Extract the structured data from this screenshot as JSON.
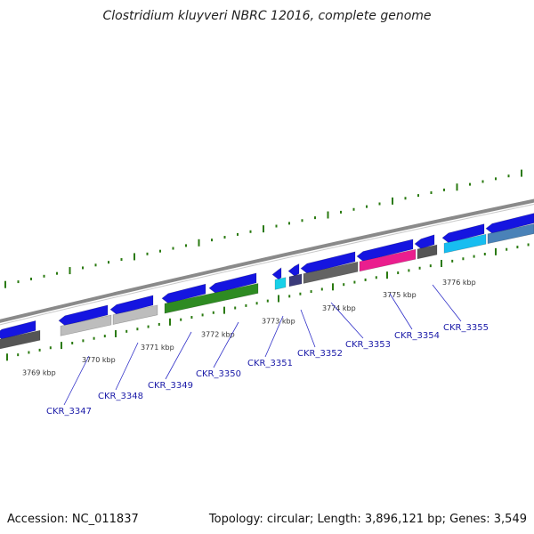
{
  "title": "Clostridium kluyveri NBRC 12016, complete genome",
  "footer": {
    "accession": "Accession: NC_011837",
    "summary": "Topology: circular; Length: 3,896,121 bp; Genes: 3,549"
  },
  "colors": {
    "gene_blue": "#1515e0",
    "backbone": "#8a8a8a",
    "tick_green": "#2a7a10",
    "label_blue": "#1a1aa8",
    "leader_blue": "#3030c8"
  },
  "ticks": [
    "3769 kbp",
    "3770 kbp",
    "3771 kbp",
    "3772 kbp",
    "3773 kbp",
    "3774 kbp",
    "3775 kbp",
    "3776 kbp"
  ],
  "gene_labels": [
    "CKR_3347",
    "CKR_3348",
    "CKR_3349",
    "CKR_3350",
    "CKR_3351",
    "CKR_3352",
    "CKR_3353",
    "CKR_3354",
    "CKR_3355"
  ],
  "feature_colors": [
    "#555555",
    "#bdbdbd",
    "#bdbdbd",
    "#2e8b22",
    "#19d0e8",
    "#3a3a7a",
    "#636363",
    "#ea1e8e",
    "#555555",
    "#17bdf0",
    "#4a82b8"
  ]
}
